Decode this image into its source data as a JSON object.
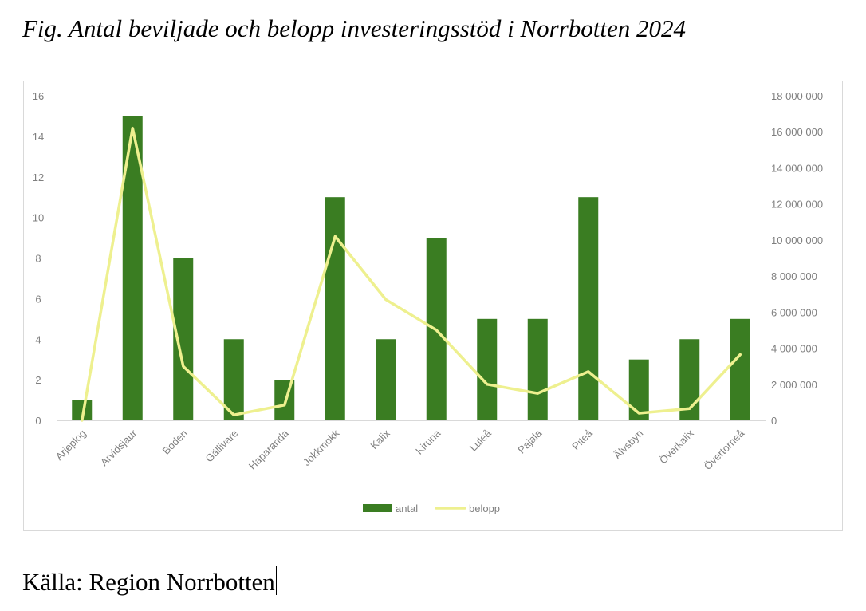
{
  "document": {
    "title": "Fig. Antal beviljade och belopp investeringsstöd i Norrbotten 2024",
    "source": "Källa: Region Norrbotten"
  },
  "colors": {
    "bar": "#3a7d22",
    "line": "#eef08f",
    "axis_text": "#7f7f7f",
    "axis_line": "#d9d9d9"
  },
  "chart_data": {
    "type": "bar",
    "title": "",
    "xlabel": "",
    "ylabel": "",
    "categories": [
      "Arjeplog",
      "Arvidsjaur",
      "Boden",
      "Gällivare",
      "Haparanda",
      "Jokkmokk",
      "Kalix",
      "Kiruna",
      "Luleå",
      "Pajala",
      "Piteå",
      "Älvsbyn",
      "Överkalix",
      "Övertorneå"
    ],
    "series": [
      {
        "name": "antal",
        "type": "bar",
        "axis": "left",
        "values": [
          1,
          15,
          8,
          4,
          2,
          11,
          4,
          9,
          5,
          5,
          11,
          3,
          4,
          5
        ]
      },
      {
        "name": "belopp",
        "type": "line",
        "axis": "right",
        "values": [
          0,
          16200000,
          3000000,
          300000,
          850000,
          10200000,
          6700000,
          5000000,
          2000000,
          1500000,
          2700000,
          400000,
          650000,
          3650000
        ]
      }
    ],
    "y_left": {
      "ylim": [
        0,
        16
      ],
      "ticks": [
        0,
        2,
        4,
        6,
        8,
        10,
        12,
        14,
        16
      ],
      "tick_labels": [
        "0",
        "2",
        "4",
        "6",
        "8",
        "10",
        "12",
        "14",
        "16"
      ]
    },
    "y_right": {
      "ylim": [
        0,
        18000000
      ],
      "ticks": [
        0,
        2000000,
        4000000,
        6000000,
        8000000,
        10000000,
        12000000,
        14000000,
        16000000,
        18000000
      ],
      "tick_labels": [
        "0",
        "2 000 000",
        "4 000 000",
        "6 000 000",
        "8 000 000",
        "10 000 000",
        "12 000 000",
        "14 000 000",
        "16 000 000",
        "18 000 000"
      ]
    },
    "grid": false,
    "legend": {
      "position": "bottom",
      "entries": [
        "antal",
        "belopp"
      ]
    }
  }
}
